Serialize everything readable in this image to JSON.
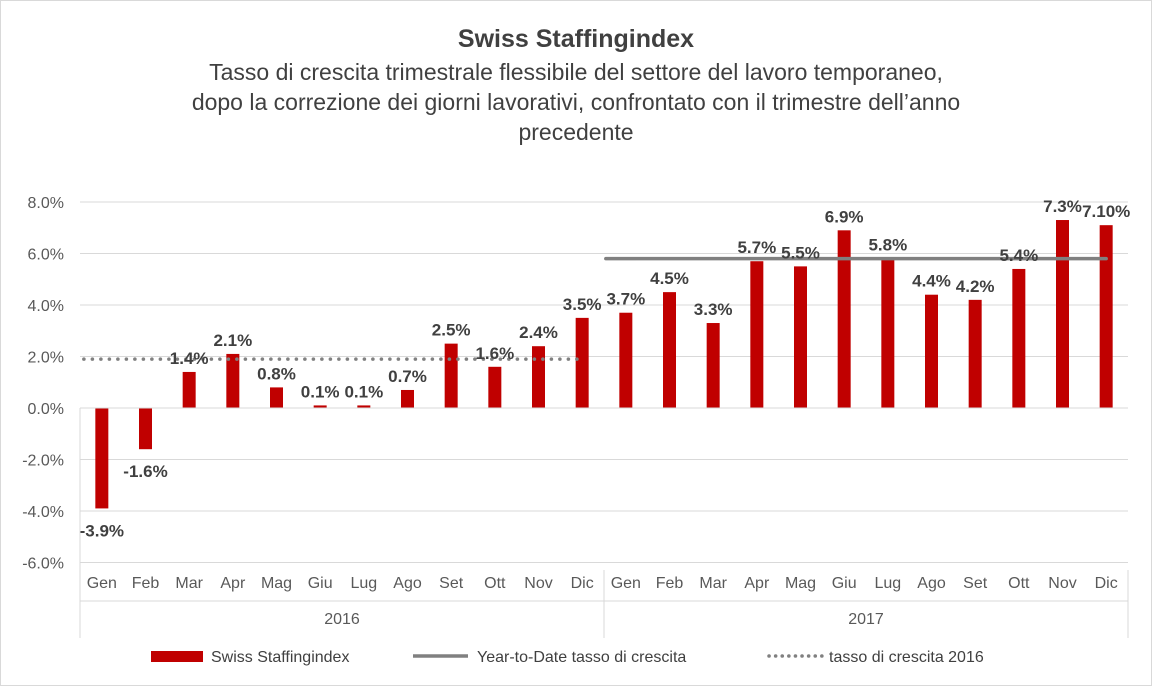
{
  "chart_data": {
    "type": "bar",
    "title": "Swiss Staffingindex",
    "subtitle_lines": [
      "Tasso di crescita trimestrale flessibile del settore del lavoro temporaneo,",
      "dopo la correzione dei giorni lavorativi, confrontato con il trimestre dell’anno",
      "precedente"
    ],
    "categories": [
      "Gen",
      "Feb",
      "Mar",
      "Apr",
      "Mag",
      "Giu",
      "Lug",
      "Ago",
      "Set",
      "Ott",
      "Nov",
      "Dic",
      "Gen",
      "Feb",
      "Mar",
      "Apr",
      "Mag",
      "Giu",
      "Lug",
      "Ago",
      "Set",
      "Ott",
      "Nov",
      "Dic"
    ],
    "groups": [
      {
        "label": "2016",
        "count": 12
      },
      {
        "label": "2017",
        "count": 12
      }
    ],
    "ylim": [
      -6,
      8
    ],
    "yticks": [
      8,
      6,
      4,
      2,
      0,
      -2,
      -4,
      -6
    ],
    "ytick_labels": [
      "8.0%",
      "6.0%",
      "4.0%",
      "2.0%",
      "0.0%",
      "-2.0%",
      "-4.0%",
      "-6.0%"
    ],
    "grid": true,
    "legend_position": "bottom",
    "series": [
      {
        "name": "Swiss Staffingindex",
        "type": "bar",
        "color": "#c00000",
        "values": [
          -3.9,
          -1.6,
          1.4,
          2.1,
          0.8,
          0.1,
          0.1,
          0.7,
          2.5,
          1.6,
          2.4,
          3.5,
          3.7,
          4.5,
          3.3,
          5.7,
          5.5,
          6.9,
          5.8,
          4.4,
          4.2,
          5.4,
          7.3,
          7.1
        ],
        "labels": [
          "-3.9%",
          "-1.6%",
          "1.4%",
          "2.1%",
          "0.8%",
          "0.1%",
          "0.1%",
          "0.7%",
          "2.5%",
          "1.6%",
          "2.4%",
          "3.5%",
          "3.7%",
          "4.5%",
          "3.3%",
          "5.7%",
          "5.5%",
          "6.9%",
          "5.8%",
          "4.4%",
          "4.2%",
          "5.4%",
          "7.3%",
          "7.10%"
        ]
      },
      {
        "name": "Year-to-Date tasso di crescita",
        "type": "line",
        "color": "#808080",
        "value": 5.8,
        "range": [
          "Gen 2017",
          "Dic 2017"
        ]
      },
      {
        "name": "tasso di crescita 2016",
        "type": "dotted-line",
        "color": "#808080",
        "value": 1.9,
        "range": [
          "Gen 2016",
          "Dic 2016"
        ]
      }
    ]
  }
}
